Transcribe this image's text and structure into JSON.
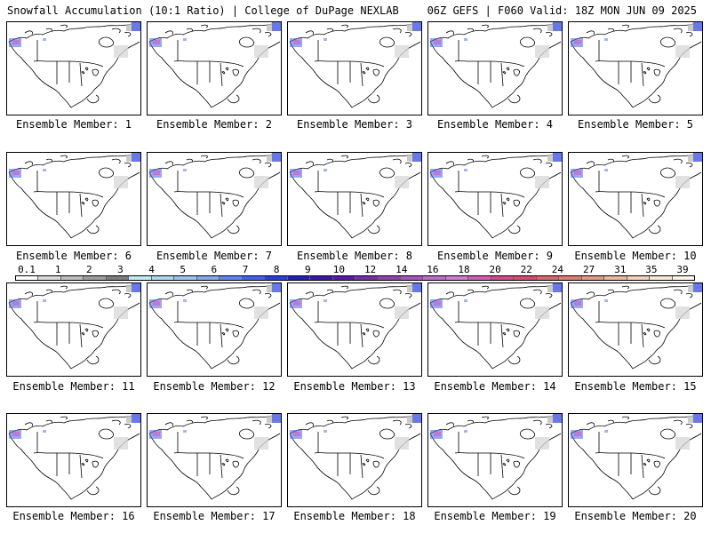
{
  "header": {
    "left_title": "Snowfall Accumulation (10:1 Ratio) | College of DuPage NEXLAB",
    "right_title": "06Z GEFS | F060 Valid: 18Z MON JUN 09 2025"
  },
  "members": [
    "Ensemble Member: 1",
    "Ensemble Member: 2",
    "Ensemble Member: 3",
    "Ensemble Member: 4",
    "Ensemble Member: 5",
    "Ensemble Member: 6",
    "Ensemble Member: 7",
    "Ensemble Member: 8",
    "Ensemble Member: 9",
    "Ensemble Member: 10",
    "Ensemble Member: 11",
    "Ensemble Member: 12",
    "Ensemble Member: 13",
    "Ensemble Member: 14",
    "Ensemble Member: 15",
    "Ensemble Member: 16",
    "Ensemble Member: 17",
    "Ensemble Member: 18",
    "Ensemble Member: 19",
    "Ensemble Member: 20"
  ],
  "legend": {
    "labels": [
      "0.1",
      "1",
      "2",
      "3",
      "4",
      "5",
      "6",
      "7",
      "8",
      "9",
      "10",
      "12",
      "14",
      "16",
      "18",
      "20",
      "22",
      "24",
      "27",
      "31",
      "35",
      "39"
    ],
    "colors": [
      "#ffffff",
      "#d9d9d9",
      "#bdbdbd",
      "#9e9e9e",
      "#7f7f7f",
      "#bfeff2",
      "#a6dbf0",
      "#9cc4ef",
      "#82a9f2",
      "#5f86f2",
      "#3f63f0",
      "#2a3fe0",
      "#1e22b8",
      "#3a1aa3",
      "#5a1aa7",
      "#7a2cb0",
      "#9540b8",
      "#ad52c4",
      "#c36ad1",
      "#d27ad6",
      "#d65bb6",
      "#d24b8a",
      "#d24e72",
      "#d66a6a",
      "#e08070",
      "#e69a84",
      "#eeb7a0",
      "#f4d1ba",
      "#fae8d6",
      "#fff4e8"
    ]
  }
}
